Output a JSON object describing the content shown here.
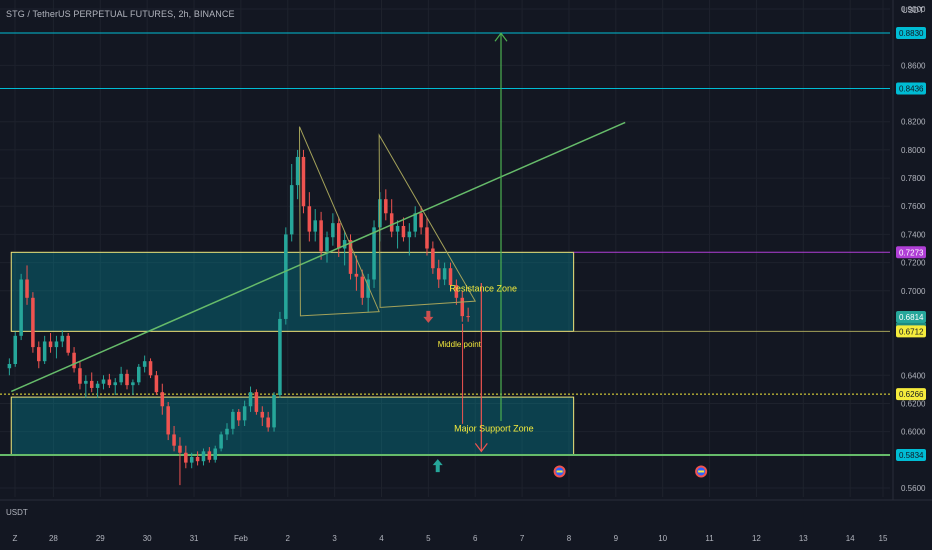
{
  "header": {
    "title": "STG / TetherUS PERPETUAL FUTURES, 2h, BINANCE",
    "currency_top": "USDT",
    "currency_bottom": "USDT"
  },
  "colors": {
    "background": "#131722",
    "grid": "#1e222d",
    "axis_text": "#b2b5be",
    "bull": "#26a69a",
    "bear": "#ef5350",
    "zone_border": "#f2e67a",
    "zone_fill": "rgba(0,151,167,0.32)",
    "cyan_line": "#00bcd4",
    "magenta_line": "#b03fd6",
    "green_line": "#66bb6a",
    "olive_line": "#a4a25a",
    "yellow_label": "#f5eb3c",
    "arrow_green": "#4caf50",
    "arrow_red": "#ef5350"
  },
  "chart_data": {
    "type": "candlestick",
    "title": "STG / TetherUS PERPETUAL FUTURES, 2h, BINANCE",
    "ylim": [
      0.555,
      0.905
    ],
    "x_axis": {
      "unit": "day index (Jan 28 = 0)",
      "range": [
        -1.14,
        17.85
      ],
      "ticks": [
        {
          "x": -0.82,
          "label": "Z"
        },
        {
          "x": 0,
          "label": "28"
        },
        {
          "x": 1,
          "label": "29"
        },
        {
          "x": 2,
          "label": "30"
        },
        {
          "x": 3,
          "label": "31"
        },
        {
          "x": 4,
          "label": "Feb"
        },
        {
          "x": 5,
          "label": "2"
        },
        {
          "x": 6,
          "label": "3"
        },
        {
          "x": 7,
          "label": "4"
        },
        {
          "x": 8,
          "label": "5"
        },
        {
          "x": 9,
          "label": "6"
        },
        {
          "x": 10,
          "label": "7"
        },
        {
          "x": 11,
          "label": "8"
        },
        {
          "x": 12,
          "label": "9"
        },
        {
          "x": 13,
          "label": "10"
        },
        {
          "x": 14,
          "label": "11"
        },
        {
          "x": 15,
          "label": "12"
        },
        {
          "x": 16,
          "label": "13"
        },
        {
          "x": 17,
          "label": "14"
        },
        {
          "x": 17.7,
          "label": "15"
        }
      ]
    },
    "y_axis": {
      "ticks": [
        "0.9000",
        "0.8600",
        "0.8200",
        "0.8000",
        "0.7800",
        "0.7600",
        "0.7400",
        "0.7200",
        "0.7000",
        "0.6400",
        "0.6200",
        "0.6000",
        "0.5600"
      ]
    },
    "price_labels": [
      {
        "value": 0.883,
        "text": "0.8830",
        "bg": "#00bcd4",
        "fg": "#131722"
      },
      {
        "value": 0.8436,
        "text": "0.8436",
        "bg": "#00bcd4",
        "fg": "#131722"
      },
      {
        "value": 0.7273,
        "text": "0.7273",
        "bg": "#b03fd6",
        "fg": "#ffffff"
      },
      {
        "value": 0.6814,
        "text": "0.6814",
        "bg": "#26a69a",
        "fg": "#ffffff"
      },
      {
        "value": 0.6712,
        "text": "0.6712",
        "bg": "#f5eb3c",
        "fg": "#131722"
      },
      {
        "value": 0.6266,
        "text": "0.6266",
        "bg": "#f5eb3c",
        "fg": "#131722"
      },
      {
        "value": 0.5834,
        "text": "0.5834",
        "bg": "#00bcd4",
        "fg": "#131722"
      }
    ],
    "countdown_label": "01:52:48",
    "horizontal_lines": [
      {
        "value": 0.883,
        "color": "#00bcd4",
        "style": "solid"
      },
      {
        "value": 0.8436,
        "color": "#00bcd4",
        "style": "solid"
      },
      {
        "value": 0.7273,
        "color": "#b03fd6",
        "style": "solid",
        "x_from": 11.1
      },
      {
        "value": 0.6712,
        "color": "#a4a25a",
        "style": "solid",
        "x_from": 11.1
      },
      {
        "value": 0.6266,
        "color": "#f5eb3c",
        "style": "dotted"
      },
      {
        "value": 0.5834,
        "color": "#66bb6a",
        "style": "solid"
      }
    ],
    "zones": [
      {
        "label": "Resistance Zone",
        "x_from": -0.9,
        "x_to": 11.1,
        "y_from": 0.6712,
        "y_to": 0.7273,
        "label_x": 8.45,
        "label_y": 0.6995
      },
      {
        "label": "Major Support Zone",
        "x_from": -0.9,
        "x_to": 11.1,
        "y_from": 0.5834,
        "y_to": 0.6245,
        "label_x": 8.55,
        "label_y": 0.6
      }
    ],
    "annotations": [
      {
        "text": "Middle point",
        "x": 8.2,
        "y": 0.6665
      }
    ],
    "trend_line": {
      "x1": -0.9,
      "y1": 0.6285,
      "x2": 12.2,
      "y2": 0.8195
    },
    "triangles": [
      {
        "points": [
          [
            5.25,
            0.8165
          ],
          [
            5.27,
            0.6822
          ],
          [
            6.95,
            0.6852
          ]
        ]
      },
      {
        "points": [
          [
            6.95,
            0.8105
          ],
          [
            6.97,
            0.6882
          ],
          [
            9.0,
            0.6926
          ]
        ]
      }
    ],
    "arrows": [
      {
        "type": "up",
        "color": "#4caf50",
        "x": 9.55,
        "y_from": 0.6075,
        "y_to": 0.8828
      },
      {
        "type": "down",
        "color": "#ef5350",
        "x": 9.13,
        "y_from": 0.7055,
        "y_to": 0.586
      },
      {
        "type": "small_down",
        "color": "#ef5350",
        "x": 8.0,
        "y": 0.6815
      },
      {
        "type": "small_up",
        "color": "#26a69a",
        "x": 8.2,
        "y": 0.5755
      }
    ],
    "red_guide_line": {
      "x": 8.73,
      "y_from": 0.6765,
      "y_to": 0.6055
    },
    "event_icons": [
      {
        "x": 10.8,
        "y": 0.5717
      },
      {
        "x": 13.82,
        "y": 0.5717
      }
    ],
    "candles": [
      [
        0.645,
        0.652,
        0.64,
        0.648
      ],
      [
        0.648,
        0.671,
        0.646,
        0.668
      ],
      [
        0.668,
        0.712,
        0.665,
        0.708
      ],
      [
        0.708,
        0.718,
        0.69,
        0.695
      ],
      [
        0.695,
        0.699,
        0.656,
        0.66
      ],
      [
        0.66,
        0.664,
        0.645,
        0.65
      ],
      [
        0.65,
        0.668,
        0.648,
        0.664
      ],
      [
        0.664,
        0.67,
        0.656,
        0.66
      ],
      [
        0.66,
        0.668,
        0.652,
        0.664
      ],
      [
        0.664,
        0.672,
        0.66,
        0.668
      ],
      [
        0.668,
        0.67,
        0.654,
        0.656
      ],
      [
        0.656,
        0.66,
        0.642,
        0.645
      ],
      [
        0.645,
        0.65,
        0.63,
        0.634
      ],
      [
        0.634,
        0.64,
        0.624,
        0.636
      ],
      [
        0.636,
        0.642,
        0.628,
        0.631
      ],
      [
        0.631,
        0.636,
        0.624,
        0.634
      ],
      [
        0.634,
        0.64,
        0.63,
        0.637
      ],
      [
        0.637,
        0.641,
        0.631,
        0.633
      ],
      [
        0.633,
        0.638,
        0.626,
        0.635
      ],
      [
        0.635,
        0.646,
        0.633,
        0.641
      ],
      [
        0.641,
        0.644,
        0.63,
        0.633
      ],
      [
        0.633,
        0.637,
        0.626,
        0.635
      ],
      [
        0.635,
        0.648,
        0.633,
        0.646
      ],
      [
        0.646,
        0.654,
        0.642,
        0.65
      ],
      [
        0.65,
        0.652,
        0.638,
        0.64
      ],
      [
        0.64,
        0.643,
        0.626,
        0.628
      ],
      [
        0.628,
        0.634,
        0.612,
        0.618
      ],
      [
        0.618,
        0.621,
        0.594,
        0.598
      ],
      [
        0.598,
        0.604,
        0.586,
        0.59
      ],
      [
        0.59,
        0.596,
        0.562,
        0.585
      ],
      [
        0.585,
        0.59,
        0.574,
        0.578
      ],
      [
        0.578,
        0.585,
        0.574,
        0.582
      ],
      [
        0.582,
        0.586,
        0.576,
        0.579
      ],
      [
        0.579,
        0.588,
        0.576,
        0.586
      ],
      [
        0.586,
        0.589,
        0.578,
        0.58
      ],
      [
        0.58,
        0.59,
        0.578,
        0.588
      ],
      [
        0.588,
        0.6,
        0.586,
        0.598
      ],
      [
        0.598,
        0.606,
        0.594,
        0.602
      ],
      [
        0.602,
        0.616,
        0.598,
        0.614
      ],
      [
        0.614,
        0.616,
        0.604,
        0.608
      ],
      [
        0.608,
        0.622,
        0.604,
        0.618
      ],
      [
        0.618,
        0.632,
        0.614,
        0.628
      ],
      [
        0.628,
        0.63,
        0.612,
        0.614
      ],
      [
        0.614,
        0.618,
        0.604,
        0.61
      ],
      [
        0.61,
        0.614,
        0.6,
        0.603
      ],
      [
        0.603,
        0.628,
        0.6,
        0.626
      ],
      [
        0.626,
        0.685,
        0.624,
        0.68
      ],
      [
        0.68,
        0.745,
        0.676,
        0.74
      ],
      [
        0.74,
        0.79,
        0.735,
        0.775
      ],
      [
        0.775,
        0.8,
        0.765,
        0.795
      ],
      [
        0.795,
        0.8,
        0.755,
        0.76
      ],
      [
        0.76,
        0.77,
        0.735,
        0.742
      ],
      [
        0.742,
        0.758,
        0.735,
        0.75
      ],
      [
        0.75,
        0.756,
        0.722,
        0.728
      ],
      [
        0.728,
        0.742,
        0.72,
        0.738
      ],
      [
        0.738,
        0.755,
        0.732,
        0.748
      ],
      [
        0.748,
        0.752,
        0.724,
        0.73
      ],
      [
        0.73,
        0.742,
        0.718,
        0.736
      ],
      [
        0.736,
        0.74,
        0.708,
        0.712
      ],
      [
        0.712,
        0.725,
        0.7,
        0.71
      ],
      [
        0.71,
        0.715,
        0.69,
        0.695
      ],
      [
        0.695,
        0.712,
        0.685,
        0.708
      ],
      [
        0.708,
        0.75,
        0.702,
        0.745
      ],
      [
        0.745,
        0.77,
        0.735,
        0.765
      ],
      [
        0.765,
        0.772,
        0.75,
        0.755
      ],
      [
        0.755,
        0.765,
        0.738,
        0.742
      ],
      [
        0.742,
        0.75,
        0.73,
        0.746
      ],
      [
        0.746,
        0.752,
        0.735,
        0.738
      ],
      [
        0.738,
        0.748,
        0.725,
        0.742
      ],
      [
        0.742,
        0.76,
        0.738,
        0.755
      ],
      [
        0.755,
        0.76,
        0.74,
        0.745
      ],
      [
        0.745,
        0.752,
        0.725,
        0.73
      ],
      [
        0.73,
        0.735,
        0.712,
        0.716
      ],
      [
        0.716,
        0.722,
        0.702,
        0.708
      ],
      [
        0.708,
        0.72,
        0.704,
        0.716
      ],
      [
        0.716,
        0.72,
        0.7,
        0.704
      ],
      [
        0.704,
        0.708,
        0.69,
        0.695
      ],
      [
        0.695,
        0.7,
        0.678,
        0.682
      ],
      [
        0.682,
        0.688,
        0.678,
        0.6814
      ]
    ],
    "candle_x_start": -0.94,
    "candle_x_step": 0.1255
  }
}
